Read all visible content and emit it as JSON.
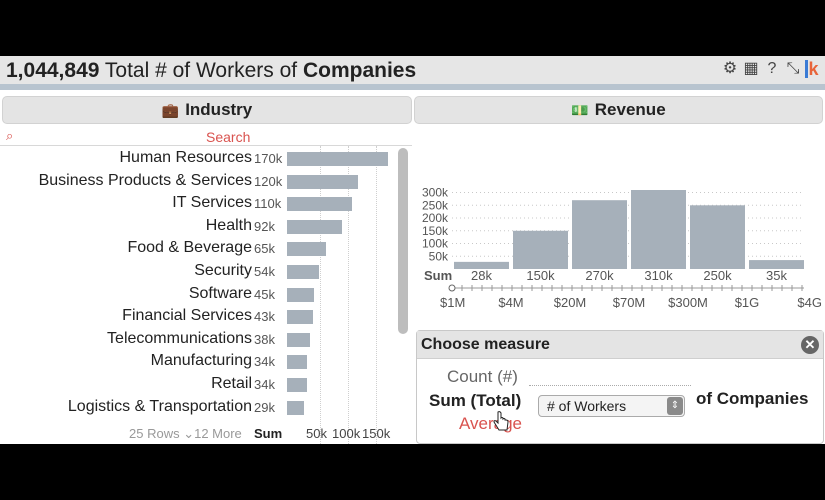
{
  "header": {
    "total": "1,044,849",
    "text_mid": "Total # of Workers of",
    "entity": "Companies",
    "tools": [
      "gear-icon",
      "table-icon",
      "help-icon",
      "expand-icon",
      "brand-logo"
    ]
  },
  "industry": {
    "title": "Industry",
    "search_placeholder": "Search",
    "rows": [
      {
        "label": "Human Resources",
        "value_label": "170k",
        "value": 170
      },
      {
        "label": "Business Products & Services",
        "value_label": "120k",
        "value": 120
      },
      {
        "label": "IT Services",
        "value_label": "110k",
        "value": 110
      },
      {
        "label": "Health",
        "value_label": "92k",
        "value": 92
      },
      {
        "label": "Food & Beverage",
        "value_label": "65k",
        "value": 65
      },
      {
        "label": "Security",
        "value_label": "54k",
        "value": 54
      },
      {
        "label": "Software",
        "value_label": "45k",
        "value": 45
      },
      {
        "label": "Financial Services",
        "value_label": "43k",
        "value": 43
      },
      {
        "label": "Telecommunications",
        "value_label": "38k",
        "value": 38
      },
      {
        "label": "Manufacturing",
        "value_label": "34k",
        "value": 34
      },
      {
        "label": "Retail",
        "value_label": "34k",
        "value": 34
      },
      {
        "label": "Logistics & Transportation",
        "value_label": "29k",
        "value": 29
      }
    ],
    "footer": {
      "rows_info": "25 Rows ⌄12 More",
      "sum_label": "Sum",
      "ticks": [
        "50k",
        "100k",
        "150k"
      ]
    }
  },
  "revenue": {
    "title": "Revenue",
    "sum_label": "Sum"
  },
  "chart_data": {
    "type": "bar",
    "categories": [
      "$1M-$4M",
      "$4M-$20M",
      "$20M-$70M",
      "$70M-$300M",
      "$300M-$1G",
      "$1G-$4G"
    ],
    "values": [
      28,
      150,
      270,
      310,
      250,
      35
    ],
    "value_labels": [
      "28k",
      "150k",
      "270k",
      "310k",
      "250k",
      "35k"
    ],
    "x_tick_labels": [
      "$1M",
      "$4M",
      "$20M",
      "$70M",
      "$300M",
      "$1G",
      "$4G"
    ],
    "y_tick_labels": [
      "50k",
      "100k",
      "150k",
      "200k",
      "250k",
      "300k"
    ],
    "y_ticks": [
      50,
      100,
      150,
      200,
      250,
      300
    ],
    "ylim": [
      0,
      310
    ],
    "grid": true,
    "bar_color": "#a6b0ba"
  },
  "measure_dialog": {
    "title": "Choose measure",
    "option_count": "Count (#)",
    "option_sum": "Sum (Total)",
    "option_avg": "Average",
    "selected_field": "# of Workers",
    "suffix": "of Companies"
  }
}
